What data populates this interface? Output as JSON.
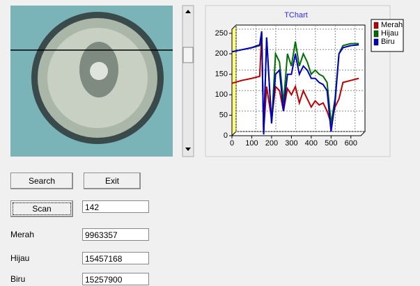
{
  "form": {
    "buttons": {
      "search": "Search",
      "exit": "Exit",
      "scan": "Scan"
    },
    "scan_value": "142",
    "fields": [
      {
        "label": "Merah",
        "value": "9963357"
      },
      {
        "label": "Hijau",
        "value": "15457168"
      },
      {
        "label": "Biru",
        "value": "15257900"
      }
    ]
  },
  "chart_data": {
    "type": "line",
    "title": "TChart",
    "x": [
      0,
      50,
      100,
      140,
      150,
      160,
      175,
      200,
      220,
      240,
      260,
      280,
      300,
      320,
      340,
      360,
      380,
      400,
      420,
      440,
      460,
      480,
      500,
      520,
      540,
      560,
      600,
      640
    ],
    "series": [
      {
        "name": "Merah",
        "color": "#c00000",
        "values": [
          128,
          135,
          140,
          145,
          250,
          10,
          120,
          40,
          120,
          110,
          60,
          115,
          100,
          120,
          80,
          110,
          90,
          70,
          85,
          75,
          80,
          60,
          30,
          70,
          90,
          130,
          135,
          140
        ]
      },
      {
        "name": "Hijau",
        "color": "#006e00",
        "values": [
          205,
          210,
          215,
          220,
          250,
          5,
          240,
          30,
          200,
          180,
          80,
          200,
          170,
          230,
          170,
          200,
          180,
          150,
          160,
          150,
          145,
          130,
          30,
          90,
          200,
          220,
          225,
          225
        ]
      },
      {
        "name": "Biru",
        "color": "#0000c0",
        "values": [
          205,
          210,
          215,
          222,
          255,
          3,
          240,
          30,
          150,
          160,
          60,
          150,
          150,
          200,
          150,
          170,
          160,
          140,
          140,
          130,
          125,
          110,
          10,
          80,
          200,
          215,
          220,
          222
        ]
      }
    ],
    "xlim": [
      0,
      650
    ],
    "ylim": [
      0,
      260
    ],
    "xticks": [
      0,
      100,
      200,
      300,
      400,
      500,
      600
    ],
    "yticks": [
      0,
      50,
      100,
      150,
      200,
      250
    ],
    "grid": true,
    "legend": "right"
  }
}
